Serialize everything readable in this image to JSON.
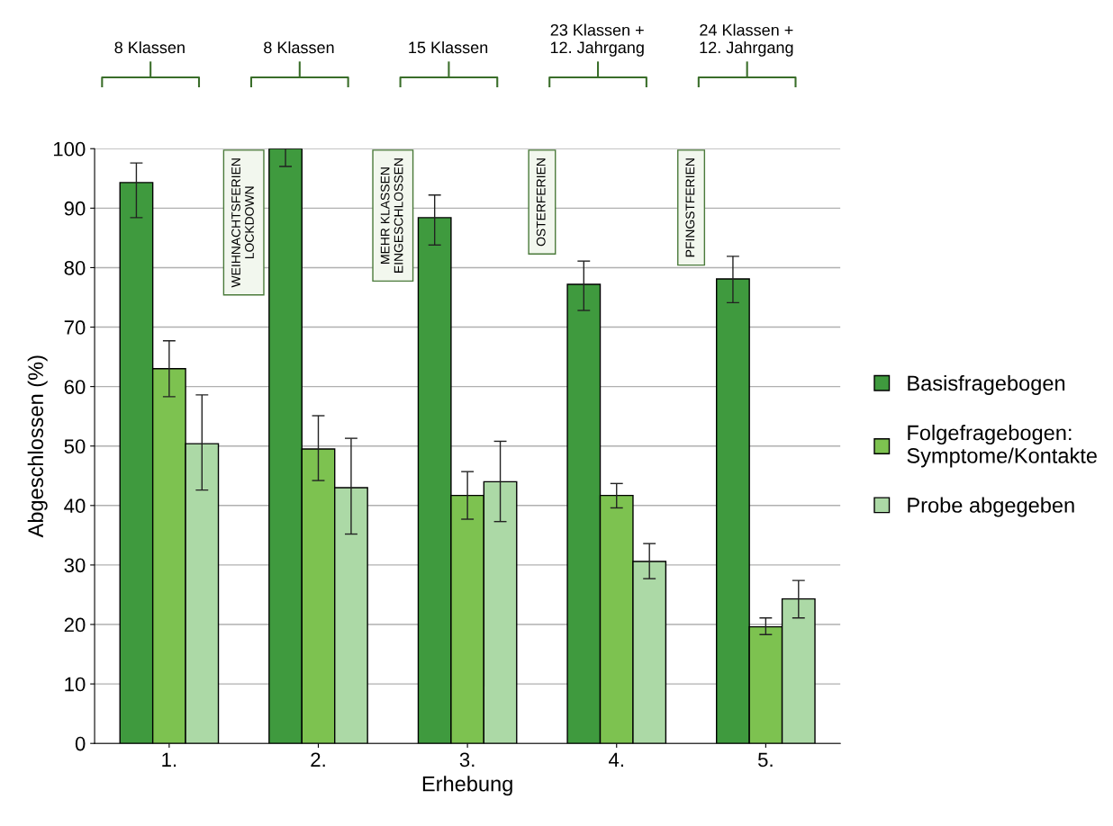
{
  "chart_data": {
    "type": "bar",
    "xlabel": "Erhebung",
    "ylabel": "Abgeschlossen (%)",
    "categories": [
      "1.",
      "2.",
      "3.",
      "4.",
      "5."
    ],
    "series": [
      {
        "name": "Basisfragebogen",
        "color": "#3f9a3e",
        "values": [
          94.3,
          100,
          88.4,
          77.2,
          78.1
        ],
        "errors": [
          [
            88.4,
            97.6
          ],
          [
            97.0,
            100
          ],
          [
            83.8,
            92.2
          ],
          [
            72.8,
            81.1
          ],
          [
            74.1,
            81.9
          ]
        ]
      },
      {
        "name": "Folgefragebogen:\nSymptome/Kontakte",
        "color": "#7dc250",
        "values": [
          63.0,
          49.5,
          41.7,
          41.7,
          19.6
        ],
        "errors": [
          [
            58.3,
            67.7
          ],
          [
            44.2,
            55.1
          ],
          [
            37.7,
            45.7
          ],
          [
            39.6,
            43.7
          ],
          [
            18.3,
            21.1
          ]
        ]
      },
      {
        "name": "Probe abgegeben",
        "color": "#acd9a6",
        "values": [
          50.4,
          43.0,
          44.0,
          30.6,
          24.3
        ],
        "errors": [
          [
            42.6,
            58.6
          ],
          [
            35.2,
            51.3
          ],
          [
            37.3,
            50.8
          ],
          [
            27.7,
            33.6
          ],
          [
            21.1,
            27.4
          ]
        ]
      }
    ],
    "ylim": [
      0,
      100
    ],
    "yticks": [
      0,
      10,
      20,
      30,
      40,
      50,
      60,
      70,
      80,
      90,
      100
    ],
    "grid": "y",
    "legend": "right",
    "annotations": [
      "8 Klassen",
      "8 Klassen",
      "15 Klassen",
      "23 Klassen +\n12. Jahrgang",
      "24 Klassen +\n12. Jahrgang",
      "WEIHNACHTSFERIEN\nLOCKDOWN",
      "MEHR KLASSEN\nEINGESCHLOSSEN",
      "OSTERFERIEN",
      "PFINGSTFERIEN"
    ]
  }
}
